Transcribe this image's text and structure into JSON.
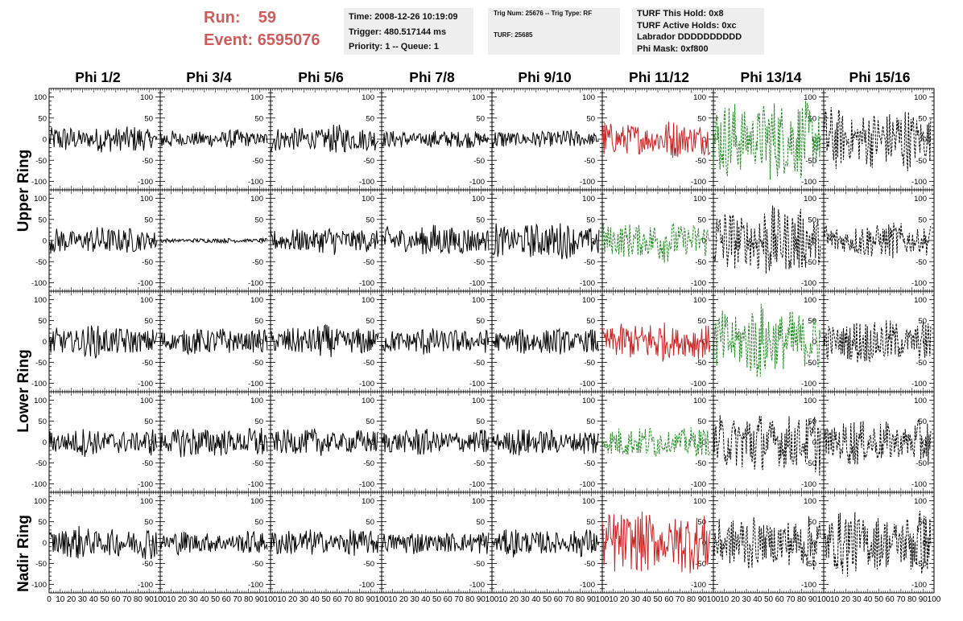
{
  "header": {
    "run_label": "Run:",
    "run_value": "59",
    "event_label": "Event:",
    "event_value": "6595076"
  },
  "info_time": {
    "time": "Time: 2008-12-26 10:19:09",
    "trigger": "Trigger: 480.517144 ms",
    "priority": "Priority: 1 -- Queue: 1"
  },
  "info_trig": {
    "trig": "Trig Num: 25676 -- Trig Type: RF",
    "turf": "TURF: 25685"
  },
  "info_turf": {
    "hold": "TURF This Hold: 0x8",
    "active": "TURF Active Holds: 0xc",
    "labrador": "Labrador DDDDDDDDDD",
    "mask": "Phi Mask: 0xf800"
  },
  "columns": [
    "Phi 1/2",
    "Phi 3/4",
    "Phi 5/6",
    "Phi 7/8",
    "Phi 9/10",
    "Phi 11/12",
    "Phi 13/14",
    "Phi 15/16"
  ],
  "ring_labels": [
    "Upper Ring",
    "Lower Ring",
    "Nadir Ring"
  ],
  "colors": {
    "red": "#cc2222",
    "green": "#1f8a1f",
    "black": "#000000",
    "header_red": "#cd5c5c",
    "info_bg": "#eeeeee"
  },
  "chart_data": {
    "type": "line",
    "xlim": [
      0,
      100
    ],
    "ylim": [
      -120,
      120
    ],
    "y_ticks": [
      -100,
      -50,
      0,
      50,
      100
    ],
    "x_ticks": [
      0,
      10,
      20,
      30,
      40,
      50,
      60,
      70,
      80,
      90,
      100
    ],
    "y_tick_labels": [
      "-100",
      "-50",
      "0",
      "50",
      "100"
    ],
    "x_tick_labels": [
      "0",
      "10",
      "20",
      "30",
      "40",
      "50",
      "60",
      "70",
      "80",
      "90",
      "100"
    ],
    "panel_amplitudes": [
      [
        30,
        20,
        30,
        20,
        20,
        40,
        90,
        70
      ],
      [
        30,
        5,
        30,
        35,
        40,
        45,
        80,
        40
      ],
      [
        35,
        30,
        35,
        30,
        30,
        45,
        80,
        50
      ],
      [
        30,
        35,
        30,
        30,
        30,
        35,
        70,
        50
      ],
      [
        35,
        25,
        30,
        25,
        30,
        70,
        60,
        70
      ]
    ],
    "panel_styles": [
      [
        "black",
        "black",
        "black",
        "black",
        "black",
        "red",
        "green",
        "black-dashed"
      ],
      [
        "black",
        "black",
        "black",
        "black",
        "black",
        "green",
        "black-dashed",
        "black-dashed"
      ],
      [
        "black",
        "black",
        "black",
        "black",
        "black",
        "red",
        "green",
        "black-dashed"
      ],
      [
        "black",
        "black",
        "black",
        "black",
        "black",
        "green",
        "black-dashed",
        "black-dashed"
      ],
      [
        "black",
        "black",
        "black",
        "black",
        "black",
        "red",
        "black-dashed",
        "black-dashed"
      ]
    ]
  }
}
